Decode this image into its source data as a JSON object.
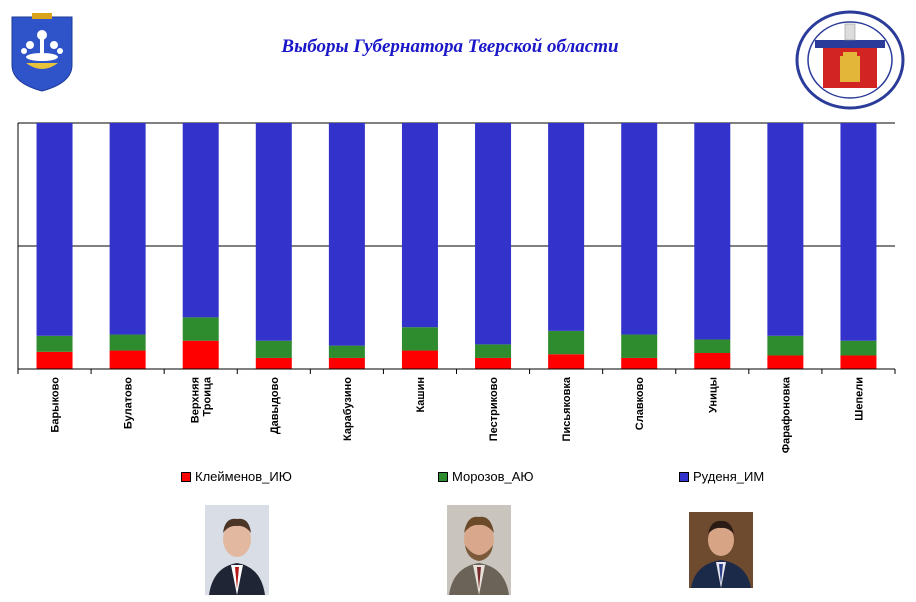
{
  "header": {
    "title": "Выборы Губернатора Тверской области"
  },
  "chart_data": {
    "type": "bar",
    "stacked": true,
    "percent": true,
    "categories": [
      "Барыково",
      "Булатово",
      "Верхняя Троица",
      "Давыдово",
      "Карабузино",
      "Кашин",
      "Пестриково",
      "Письяковка",
      "Славково",
      "Уницы",
      "Фарафоновка",
      "Шепели"
    ],
    "series": [
      {
        "name": "Клейменов_ИЮ",
        "color": "#ff0000",
        "values": [
          7,
          7.5,
          11.5,
          4.5,
          4.5,
          7.5,
          4.5,
          6,
          4.5,
          6.5,
          5.5,
          5.5
        ]
      },
      {
        "name": "Морозов_АЮ",
        "color": "#2e8b2e",
        "values": [
          6.5,
          6.5,
          9.5,
          7,
          5,
          9.5,
          5.5,
          9.5,
          9.5,
          5.5,
          8,
          6
        ]
      },
      {
        "name": "Руденя_ИМ",
        "color": "#3333cc",
        "values": [
          86.5,
          86,
          79,
          88.5,
          90.5,
          83,
          90,
          84.5,
          86,
          88,
          86.5,
          88.5
        ]
      }
    ],
    "ylim": [
      0,
      100
    ],
    "grid": true,
    "legend": "bottom"
  }
}
